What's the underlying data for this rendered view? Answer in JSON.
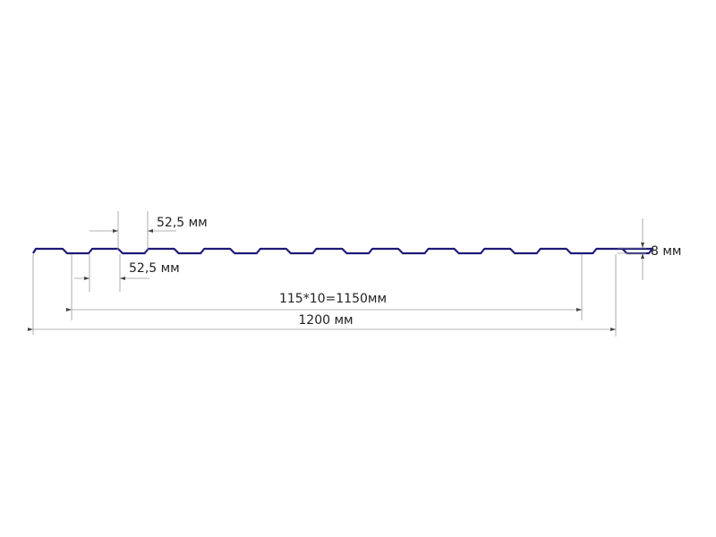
{
  "profile_color": "#1e1a78",
  "labels": {
    "top_rib_width": "52,5 мм",
    "bottom_rib_width": "52,5 мм",
    "height": "8 мм",
    "useful_width": "115*10=1150мм",
    "total_width": "1200 мм"
  }
}
